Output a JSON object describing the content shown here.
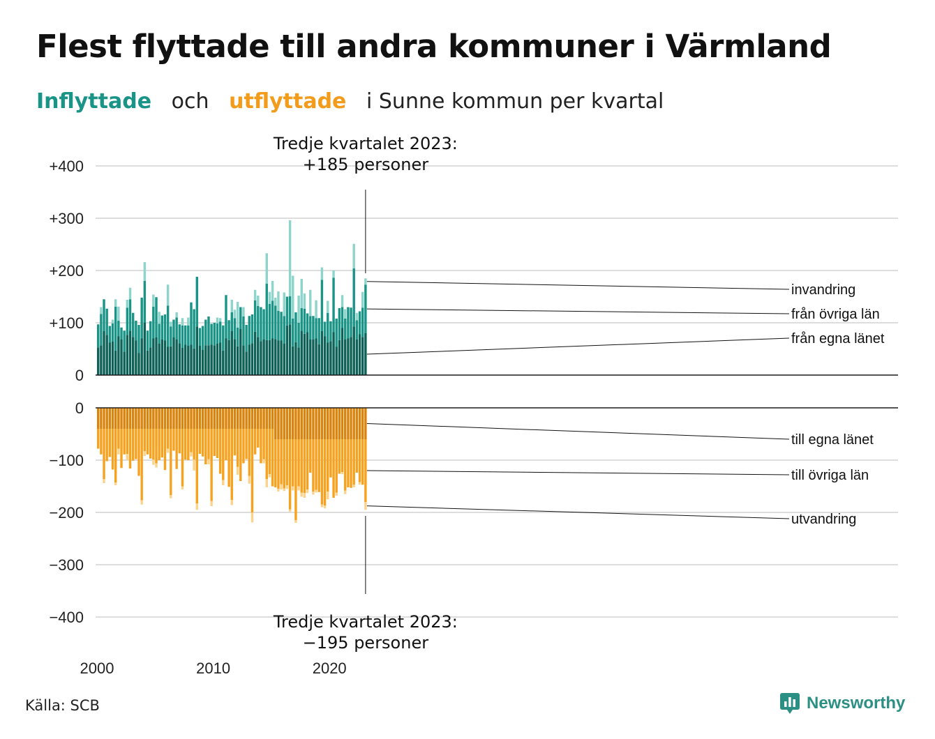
{
  "title": "Flest flyttade till andra kommuner i Värmland",
  "subtitle": {
    "part_in": "Inflyttade",
    "part_och": "och",
    "part_out": "utflyttade",
    "part_rest": "i Sunne kommun per kvartal"
  },
  "source": "Källa: SCB",
  "brand": "Newsworthy",
  "colors": {
    "in_egna": "#0e6157",
    "in_ovriga": "#1a9486",
    "in_invandring": "#8dd4cb",
    "out_egna": "#d9840c",
    "out_ovriga": "#f7a21f",
    "out_utvandring": "#fbd38d",
    "grid": "#dddddd"
  },
  "chart_data": {
    "type": "bar",
    "stacked": true,
    "x_start": "2000 Q1",
    "x_end": "2023 Q3",
    "frequency": "quarterly",
    "xticks": [
      "2000",
      "2010",
      "2020"
    ],
    "top_panel": {
      "yticks": [
        "+400",
        "+300",
        "+200",
        "+100",
        "0"
      ],
      "ylim": [
        0,
        400
      ],
      "series": [
        {
          "name": "från egna länet",
          "values": [
            53,
            57,
            84,
            77,
            62,
            64,
            47,
            74,
            68,
            45,
            77,
            85,
            73,
            66,
            42,
            70,
            100,
            47,
            53,
            70,
            72,
            60,
            68,
            66,
            54,
            55,
            72,
            68,
            61,
            52,
            58,
            56,
            58,
            51,
            93,
            56,
            48,
            57,
            57,
            58,
            57,
            60,
            62,
            47,
            70,
            67,
            84,
            69,
            55,
            88,
            57,
            45,
            58,
            61,
            83,
            73,
            65,
            68,
            67,
            67,
            70,
            69,
            66,
            66,
            60,
            95,
            97,
            55,
            63,
            53,
            85,
            79,
            82,
            68,
            68,
            70,
            59,
            84,
            74,
            62,
            65,
            82,
            54,
            67,
            90,
            68,
            70,
            73,
            93,
            68,
            78,
            73,
            80
          ]
        },
        {
          "name": "från övriga län",
          "values": [
            44,
            60,
            61,
            50,
            32,
            35,
            84,
            30,
            23,
            40,
            52,
            60,
            46,
            38,
            54,
            78,
            80,
            38,
            50,
            61,
            77,
            38,
            46,
            50,
            79,
            38,
            34,
            42,
            36,
            43,
            37,
            39,
            81,
            75,
            95,
            34,
            46,
            49,
            55,
            40,
            43,
            39,
            40,
            48,
            83,
            38,
            36,
            40,
            36,
            42,
            55,
            51,
            55,
            55,
            60,
            59,
            65,
            58,
            108,
            69,
            72,
            64,
            57,
            55,
            53,
            55,
            54,
            53,
            57,
            47,
            43,
            48,
            36,
            45,
            45,
            39,
            50,
            98,
            28,
            57,
            38,
            104,
            54,
            61,
            40,
            40,
            60,
            56,
            111,
            37,
            44,
            56,
            93
          ]
        },
        {
          "name": "invandring",
          "values": [
            0,
            13,
            0,
            0,
            0,
            7,
            14,
            27,
            0,
            0,
            15,
            22,
            0,
            0,
            0,
            0,
            36,
            0,
            0,
            23,
            0,
            23,
            0,
            0,
            40,
            9,
            0,
            10,
            0,
            14,
            0,
            15,
            0,
            0,
            0,
            0,
            0,
            0,
            0,
            0,
            0,
            11,
            7,
            0,
            0,
            0,
            24,
            16,
            49,
            0,
            18,
            0,
            0,
            0,
            20,
            20,
            0,
            0,
            58,
            23,
            38,
            15,
            37,
            0,
            45,
            0,
            145,
            82,
            0,
            52,
            56,
            29,
            0,
            50,
            0,
            34,
            0,
            24,
            0,
            23,
            0,
            14,
            0,
            0,
            23,
            18,
            0,
            0,
            47,
            14,
            0,
            30,
            12
          ]
        }
      ]
    },
    "bottom_panel": {
      "yticks": [
        "0",
        "−100",
        "−200",
        "−300",
        "−400"
      ],
      "ylim": [
        0,
        -400
      ],
      "series": [
        {
          "name": "till egna länet",
          "values": [
            -40,
            -40,
            -40,
            -40,
            -40,
            -40,
            -40,
            -40,
            -40,
            -40,
            -40,
            -40,
            -40,
            -40,
            -40,
            -40,
            -40,
            -40,
            -40,
            -40,
            -40,
            -40,
            -40,
            -40,
            -40,
            -40,
            -40,
            -40,
            -40,
            -40,
            -40,
            -40,
            -40,
            -40,
            -40,
            -40,
            -40,
            -40,
            -40,
            -40,
            -40,
            -40,
            -40,
            -40,
            -40,
            -40,
            -40,
            -40,
            -40,
            -40,
            -40,
            -40,
            -40,
            -40,
            -40,
            -40,
            -40,
            -40,
            -40,
            -40,
            -40,
            -60,
            -60,
            -60,
            -60,
            -60,
            -60,
            -60,
            -60,
            -60,
            -60,
            -60,
            -60,
            -60,
            -60,
            -60,
            -60,
            -60,
            -60,
            -60,
            -60,
            -60,
            -60,
            -60,
            -60,
            -60,
            -60,
            -60,
            -60,
            -60,
            -60,
            -60,
            -60
          ]
        },
        {
          "name": "till övriga län",
          "values": [
            -38,
            -49,
            -96,
            -62,
            -54,
            -78,
            -103,
            -38,
            -75,
            -49,
            -48,
            -76,
            -61,
            -58,
            -90,
            -137,
            -43,
            -49,
            -57,
            -59,
            -66,
            -60,
            -55,
            -79,
            -38,
            -127,
            -42,
            -77,
            -47,
            -110,
            -59,
            -60,
            -45,
            -59,
            -143,
            -48,
            -53,
            -68,
            -58,
            -138,
            -52,
            -56,
            -86,
            -98,
            -60,
            -111,
            -136,
            -51,
            -73,
            -100,
            -66,
            -58,
            -90,
            -160,
            -49,
            -36,
            -66,
            -58,
            -96,
            -87,
            -110,
            -92,
            -95,
            -86,
            -94,
            -88,
            -134,
            -90,
            -155,
            -90,
            -102,
            -103,
            -96,
            -64,
            -100,
            -97,
            -101,
            -125,
            -127,
            -100,
            -73,
            -112,
            -102,
            -66,
            -63,
            -98,
            -92,
            -93,
            -87,
            -64,
            -82,
            -87,
            -120
          ]
        },
        {
          "name": "utvandring",
          "values": [
            0,
            0,
            -8,
            0,
            0,
            0,
            -5,
            -11,
            0,
            0,
            -12,
            0,
            0,
            0,
            0,
            -8,
            -9,
            0,
            0,
            -10,
            -8,
            0,
            0,
            0,
            -8,
            -6,
            0,
            0,
            0,
            -6,
            0,
            0,
            -8,
            -21,
            -12,
            0,
            0,
            0,
            -10,
            -10,
            0,
            0,
            0,
            -10,
            0,
            0,
            -10,
            0,
            -15,
            0,
            0,
            0,
            -15,
            -19,
            0,
            0,
            0,
            -8,
            -16,
            -6,
            0,
            0,
            -5,
            -10,
            -5,
            -7,
            -5,
            -8,
            -5,
            -8,
            -8,
            -9,
            -7,
            0,
            -6,
            -5,
            0,
            -5,
            -5,
            -15,
            0,
            0,
            -6,
            0,
            -4,
            -7,
            0,
            0,
            -5,
            0,
            -5,
            0,
            -15
          ]
        }
      ]
    },
    "annotations": {
      "top": {
        "line1": "Tredje kvartalet 2023:",
        "line2": "+185 personer"
      },
      "bottom": {
        "line1": "Tredje kvartalet 2023:",
        "line2": "−195 personer"
      }
    }
  }
}
